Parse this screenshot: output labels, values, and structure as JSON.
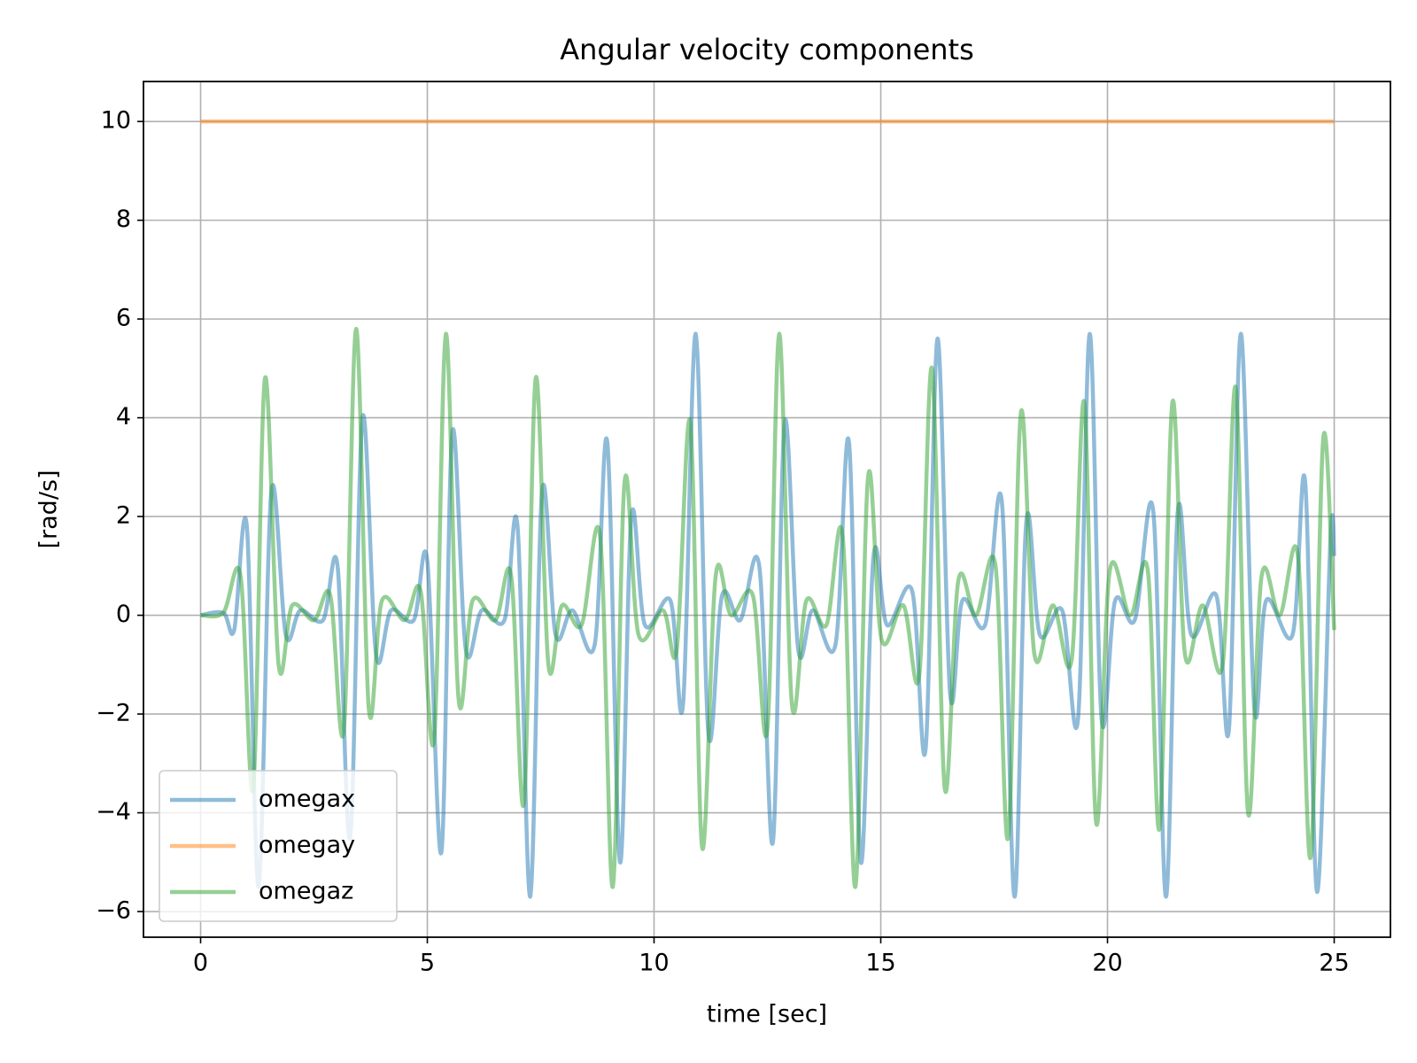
{
  "chart_data": {
    "type": "line",
    "title": "Angular velocity components",
    "x_label": "time [sec]",
    "y_label": "[rad/s]",
    "xlim": [
      -1.26,
      26.24
    ],
    "ylim": [
      -6.52,
      10.81
    ],
    "xticks": [
      0,
      5,
      10,
      15,
      20,
      25
    ],
    "yticks": [
      {
        "value": -6,
        "label": "−6"
      },
      {
        "value": -4,
        "label": "−4"
      },
      {
        "value": -2,
        "label": "−2"
      },
      0,
      2,
      4,
      6,
      8,
      10
    ],
    "grid": true,
    "legend": "lower left",
    "series": [
      {
        "name": "omegax",
        "color": "#1f77b4",
        "x": [
          0,
          0.5,
          0.74,
          1.02,
          1.28,
          1.56,
          1.88,
          2.2,
          2.7,
          3.02,
          3.3,
          3.57,
          3.87,
          4.2,
          4.7,
          5.0,
          5.31,
          5.55,
          5.85,
          6.2,
          6.7,
          6.99,
          7.27,
          7.53,
          7.83,
          8.2,
          8.69,
          8.97,
          9.25,
          9.5,
          9.8,
          10.36,
          10.64,
          10.92,
          11.2,
          11.5,
          11.9,
          12.32,
          12.62,
          12.88,
          13.18,
          13.5,
          14.0,
          14.3,
          14.56,
          14.84,
          15.14,
          15.69,
          15.99,
          16.25,
          16.53,
          16.8,
          17.3,
          17.67,
          17.95,
          18.21,
          18.51,
          19.0,
          19.35,
          19.61,
          19.87,
          20.17,
          20.6,
          21.01,
          21.29,
          21.55,
          21.85,
          22.4,
          22.68,
          22.94,
          23.24,
          23.5,
          24.08,
          24.36,
          24.62,
          24.92,
          25
        ],
        "values": [
          0,
          0.05,
          -0.3,
          1.8,
          -5.5,
          2.5,
          -0.4,
          0.1,
          -0.1,
          1.0,
          -4.5,
          4.0,
          -0.8,
          0.1,
          -0.1,
          1.1,
          -4.8,
          3.7,
          -0.7,
          0.1,
          -0.1,
          1.8,
          -5.7,
          2.5,
          -0.4,
          0.1,
          -0.6,
          3.5,
          -5.0,
          2.0,
          -0.2,
          0.3,
          -1.8,
          5.7,
          -2.4,
          0.4,
          -0.1,
          1.0,
          -4.6,
          3.9,
          -0.7,
          0.1,
          -0.6,
          3.5,
          -5.0,
          1.2,
          -0.2,
          0.5,
          -2.7,
          5.6,
          -1.6,
          0.3,
          -0.2,
          2.3,
          -5.7,
          1.9,
          -0.4,
          0.1,
          -2.1,
          5.7,
          -2.1,
          0.3,
          -0.1,
          2.1,
          -5.7,
          2.1,
          -0.4,
          0.4,
          -2.3,
          5.7,
          -1.9,
          0.3,
          -0.4,
          2.7,
          -5.6,
          1.6,
          1.2
        ]
      },
      {
        "name": "omegay",
        "color": "#ff7f0e",
        "x": [
          0,
          25
        ],
        "values": [
          10,
          10
        ]
      },
      {
        "name": "omegaz",
        "color": "#2ca02c",
        "x": [
          0,
          0.5,
          0.88,
          1.16,
          1.42,
          1.72,
          2.02,
          2.5,
          2.86,
          3.16,
          3.43,
          3.71,
          4.0,
          4.5,
          4.85,
          5.15,
          5.41,
          5.69,
          6.0,
          6.5,
          6.85,
          7.13,
          7.39,
          7.67,
          7.97,
          8.4,
          8.81,
          9.09,
          9.35,
          9.66,
          10.2,
          10.5,
          10.8,
          11.06,
          11.36,
          11.7,
          12.18,
          12.5,
          12.76,
          13.04,
          13.36,
          13.8,
          14.16,
          14.44,
          14.72,
          15.02,
          15.5,
          15.85,
          16.13,
          16.41,
          16.71,
          17.1,
          17.53,
          17.81,
          18.09,
          18.39,
          18.8,
          19.21,
          19.49,
          19.75,
          20.05,
          20.5,
          20.89,
          21.15,
          21.43,
          21.71,
          22.1,
          22.54,
          22.83,
          23.1,
          23.4,
          23.8,
          24.2,
          24.48,
          24.76,
          25
        ],
        "values": [
          0,
          0.05,
          0.8,
          -3.5,
          4.8,
          -1.0,
          0.2,
          -0.1,
          0.4,
          -2.3,
          5.8,
          -1.9,
          0.3,
          -0.1,
          0.5,
          -2.5,
          5.7,
          -1.7,
          0.3,
          -0.1,
          0.8,
          -3.8,
          4.8,
          -1.0,
          0.2,
          -0.2,
          1.6,
          -5.5,
          2.7,
          -0.4,
          0.1,
          -0.7,
          3.9,
          -4.7,
          0.8,
          0,
          0.4,
          -2.3,
          5.7,
          -1.8,
          0.3,
          -0.2,
          1.6,
          -5.5,
          2.8,
          -0.5,
          0.2,
          -1.2,
          5.0,
          -3.5,
          0.7,
          0,
          1.0,
          -4.5,
          4.1,
          -0.8,
          0.2,
          -0.9,
          4.3,
          -4.2,
          0.9,
          0,
          0.9,
          -4.3,
          4.3,
          -0.8,
          0.2,
          -1.0,
          4.6,
          -4.0,
          0.8,
          0,
          1.2,
          -4.9,
          3.6,
          -0.3
        ]
      }
    ]
  }
}
